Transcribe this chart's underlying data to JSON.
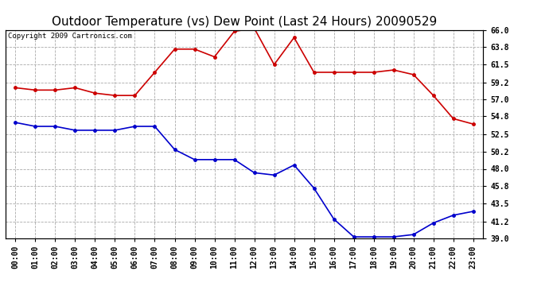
{
  "title": "Outdoor Temperature (vs) Dew Point (Last 24 Hours) 20090529",
  "copyright": "Copyright 2009 Cartronics.com",
  "x_labels": [
    "00:00",
    "01:00",
    "02:00",
    "03:00",
    "04:00",
    "05:00",
    "06:00",
    "07:00",
    "08:00",
    "09:00",
    "10:00",
    "11:00",
    "12:00",
    "13:00",
    "14:00",
    "15:00",
    "16:00",
    "17:00",
    "18:00",
    "19:00",
    "20:00",
    "21:00",
    "22:00",
    "23:00"
  ],
  "temp_data": [
    58.5,
    58.2,
    58.2,
    58.5,
    57.8,
    57.5,
    57.5,
    60.5,
    63.5,
    63.5,
    62.5,
    65.8,
    66.2,
    61.5,
    65.0,
    60.5,
    60.5,
    60.5,
    60.5,
    60.8,
    60.2,
    57.5,
    54.5,
    53.8
  ],
  "dew_data": [
    54.0,
    53.5,
    53.5,
    53.0,
    53.0,
    53.0,
    53.5,
    53.5,
    50.5,
    49.2,
    49.2,
    49.2,
    47.5,
    47.2,
    48.5,
    45.5,
    41.5,
    39.2,
    39.2,
    39.2,
    39.5,
    41.0,
    42.0,
    42.5
  ],
  "temp_color": "#cc0000",
  "dew_color": "#0000cc",
  "bg_color": "#ffffff",
  "grid_color": "#aaaaaa",
  "ylim": [
    39.0,
    66.0
  ],
  "yticks": [
    39.0,
    41.2,
    43.5,
    45.8,
    48.0,
    50.2,
    52.5,
    54.8,
    57.0,
    59.2,
    61.5,
    63.8,
    66.0
  ],
  "title_fontsize": 11,
  "copyright_fontsize": 6.5,
  "tick_fontsize": 7,
  "xlabel_fontsize": 7
}
